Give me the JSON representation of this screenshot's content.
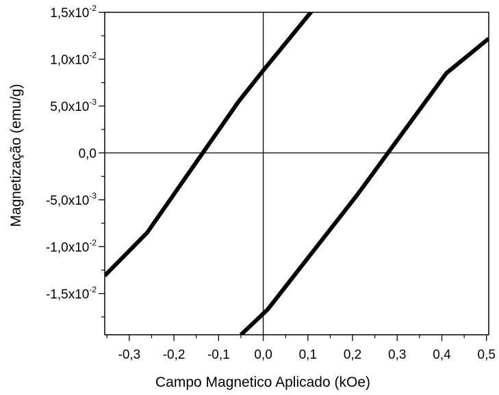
{
  "chart_data": {
    "type": "line",
    "title": "",
    "xlabel": "Campo Magnetico Aplicado (kOe)",
    "ylabel": "Magnetização (emu/g)",
    "xlim": [
      -0.355,
      0.505
    ],
    "ylim": [
      -0.0194,
      0.015
    ],
    "grid": false,
    "legend": "none",
    "zero_lines": true,
    "line_color": "#000000",
    "x_ticks": [
      {
        "value": -0.3,
        "label": "-0,3"
      },
      {
        "value": -0.2,
        "label": "-0,2"
      },
      {
        "value": -0.1,
        "label": "-0,1"
      },
      {
        "value": 0.0,
        "label": "0,0"
      },
      {
        "value": 0.1,
        "label": "0,1"
      },
      {
        "value": 0.2,
        "label": "0,2"
      },
      {
        "value": 0.3,
        "label": "0,3"
      },
      {
        "value": 0.4,
        "label": "0,4"
      },
      {
        "value": 0.5,
        "label": "0,5"
      }
    ],
    "y_ticks": [
      {
        "value": 0.015,
        "base": "1,5x10",
        "exp": "-2"
      },
      {
        "value": 0.01,
        "base": "1,0x10",
        "exp": "-2"
      },
      {
        "value": 0.005,
        "base": "5,0x10",
        "exp": "-3"
      },
      {
        "value": 0.0,
        "base": "0,0",
        "exp": ""
      },
      {
        "value": -0.005,
        "base": "-5,0x10",
        "exp": "-3"
      },
      {
        "value": -0.01,
        "base": "-1,0x10",
        "exp": "-2"
      },
      {
        "value": -0.015,
        "base": "-1,5x10",
        "exp": "-2"
      }
    ],
    "series": [
      {
        "x": [
          -0.355,
          -0.26,
          -0.055,
          0.0,
          0.11
        ],
        "y": [
          -0.0131,
          -0.0085,
          0.0055,
          0.0088,
          0.0152
        ]
      },
      {
        "x": [
          -0.05,
          0.01,
          0.21,
          0.41,
          0.505
        ],
        "y": [
          -0.0194,
          -0.0167,
          -0.0045,
          0.0085,
          0.0122
        ]
      }
    ]
  }
}
